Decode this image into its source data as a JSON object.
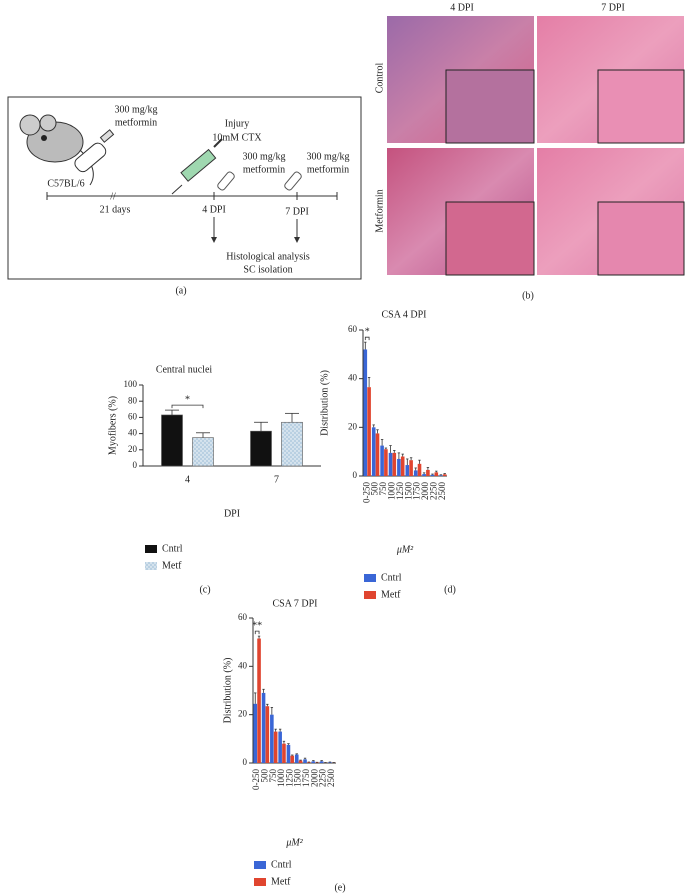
{
  "panel_labels": [
    "(a)",
    "(b)",
    "(c)",
    "(d)",
    "(e)"
  ],
  "diagram": {
    "strain": "C57BL/6",
    "pretreatment": [
      "300 mg/kg",
      "metformin"
    ],
    "interval": "21 days",
    "injury": [
      "Injury",
      "10mM CTX"
    ],
    "dose_2": [
      "300 mg/kg",
      "metformin"
    ],
    "dose_3": [
      "300 mg/kg",
      "metformin"
    ],
    "timepoints": [
      "4 DPI",
      "7 DPI"
    ],
    "readout": [
      "Histological analysis",
      "SC isolation"
    ]
  },
  "histology": {
    "columns": [
      "4 DPI",
      "7 DPI"
    ],
    "rows": [
      "Control",
      "Metformin"
    ]
  },
  "chart_data": [
    {
      "type": "bar",
      "title": "Central nuclei",
      "x_label": "DPI",
      "y_label": "Myofibers (%)",
      "categories": [
        "4",
        "7"
      ],
      "series": [
        {
          "name": "Cntrl",
          "color": "#111111",
          "values": [
            63,
            43
          ],
          "errors": [
            6,
            11
          ]
        },
        {
          "name": "Metf",
          "color": "#b9d0e2",
          "pattern": "dots",
          "values": [
            35,
            54
          ],
          "errors": [
            6,
            11
          ]
        }
      ],
      "ylim": [
        0,
        100
      ],
      "yticks": [
        0,
        20,
        40,
        60,
        80,
        100
      ],
      "annotation": "*"
    },
    {
      "type": "bar",
      "title": "CSA 4 DPI",
      "x_label": "μM²",
      "y_label": "Distribution (%)",
      "categories": [
        "0-250",
        "500",
        "750",
        "1000",
        "1250",
        "1500",
        "1750",
        "2000",
        "2250",
        "2500"
      ],
      "series": [
        {
          "name": "Cntrl",
          "color": "#3a66d6",
          "values": [
            52,
            20,
            12.5,
            9.5,
            7,
            4.5,
            2.3,
            0.8,
            0.5,
            0.3
          ],
          "errors": [
            3,
            1,
            2.5,
            3,
            2.5,
            2.5,
            1,
            0.5,
            0.3,
            0.2
          ]
        },
        {
          "name": "Metf",
          "color": "#e0452f",
          "values": [
            36.5,
            17.5,
            11,
            9.5,
            8,
            6.5,
            5,
            2.5,
            1.5,
            0.7
          ],
          "errors": [
            4,
            1.5,
            0.5,
            1,
            1,
            1,
            1.5,
            1,
            0.5,
            0.3
          ]
        }
      ],
      "ylim": [
        0,
        60
      ],
      "yticks": [
        0,
        20,
        40,
        60
      ],
      "annotation": "*"
    },
    {
      "type": "bar",
      "title": "CSA 7 DPI",
      "x_label": "μM²",
      "y_label": "Distribution (%)",
      "categories": [
        "0-250",
        "500",
        "750",
        "1000",
        "1250",
        "1500",
        "1750",
        "2000",
        "2250",
        "2500"
      ],
      "series": [
        {
          "name": "Cntrl",
          "color": "#3a66d6",
          "values": [
            24.5,
            29,
            20,
            13,
            7.5,
            3.5,
            1.5,
            0.7,
            0.7,
            0.3
          ],
          "errors": [
            4.5,
            1.5,
            3,
            1,
            0.5,
            0.3,
            0.5,
            0.3,
            0.3,
            0.1
          ]
        },
        {
          "name": "Metf",
          "color": "#e0452f",
          "values": [
            51.5,
            23.5,
            13,
            8,
            3,
            1,
            0.3,
            0.2,
            0.1,
            0.1
          ],
          "errors": [
            1,
            0.8,
            1,
            1,
            0.3,
            0.2,
            0.1,
            0.1,
            0.1,
            0.1
          ]
        }
      ],
      "ylim": [
        0,
        60
      ],
      "yticks": [
        0,
        20,
        40,
        60
      ],
      "annotation": "**"
    }
  ]
}
